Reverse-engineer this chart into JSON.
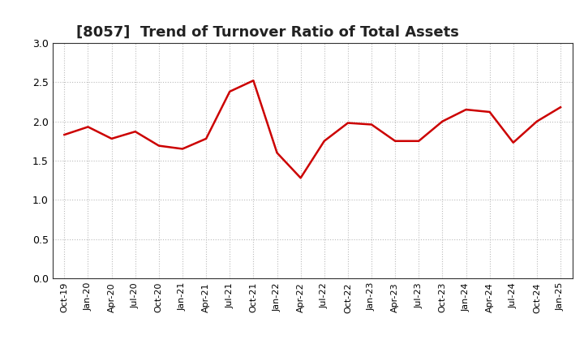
{
  "title": "[8057]  Trend of Turnover Ratio of Total Assets",
  "x_labels": [
    "Oct-19",
    "Jan-20",
    "Apr-20",
    "Jul-20",
    "Oct-20",
    "Jan-21",
    "Apr-21",
    "Jul-21",
    "Oct-21",
    "Jan-22",
    "Apr-22",
    "Jul-22",
    "Oct-22",
    "Jan-23",
    "Apr-23",
    "Jul-23",
    "Oct-23",
    "Jan-24",
    "Apr-24",
    "Jul-24",
    "Oct-24",
    "Jan-25"
  ],
  "y_values": [
    1.83,
    1.93,
    1.78,
    1.87,
    1.69,
    1.65,
    1.78,
    2.38,
    2.52,
    1.6,
    1.28,
    1.75,
    1.98,
    1.96,
    1.75,
    1.75,
    2.0,
    2.15,
    2.12,
    1.73,
    2.0,
    2.18
  ],
  "line_color": "#cc0000",
  "line_width": 1.8,
  "ylim": [
    0.0,
    3.0
  ],
  "yticks": [
    0.0,
    0.5,
    1.0,
    1.5,
    2.0,
    2.5,
    3.0
  ],
  "title_fontsize": 13,
  "bg_color": "#ffffff",
  "grid_color": "#bbbbbb"
}
